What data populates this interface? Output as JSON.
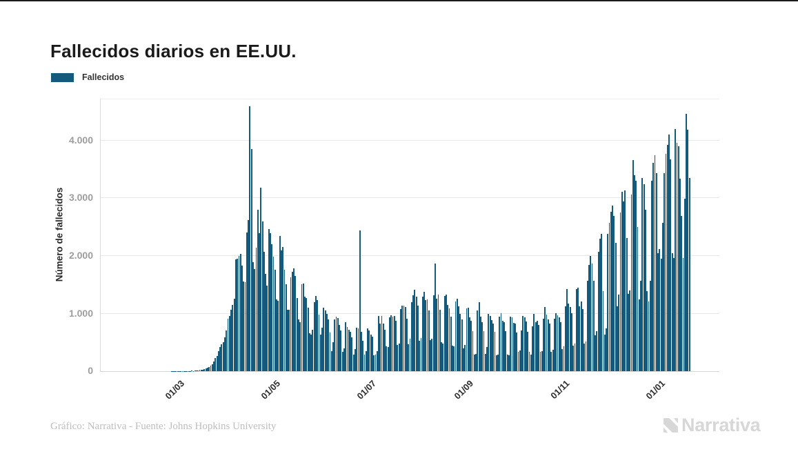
{
  "page": {
    "title": "Fallecidos diarios en EE.UU."
  },
  "legend": {
    "label": "Fallecidos",
    "swatch_color": "#135a7c"
  },
  "footer": {
    "credit": "Gráfico: Narrativa - Fuente: Johns Hopkins University",
    "logo_text": "Narrativa"
  },
  "colors": {
    "bar": "#135a7c",
    "title": "#1a1a1a",
    "gridline": "#e7e7e7",
    "y_tick_label": "#9c9c9c",
    "x_tick_label": "#2d2d2d",
    "footer_text": "#bdbdbd",
    "logo": "#d7d7d7"
  },
  "chart_data": {
    "type": "bar",
    "title": "Fallecidos diarios en EE.UU.",
    "ylabel": "Número de fallecidos",
    "xlabel": "",
    "legend_position": "top-left",
    "grid": "horizontal",
    "ylim": [
      0,
      4716
    ],
    "y_ticks": {
      "values": [
        0,
        1000,
        2000,
        3000,
        4000
      ],
      "labels": [
        "0",
        "1.000",
        "2.000",
        "3.000",
        "4.000"
      ]
    },
    "x_unit": "day",
    "x_ticks": [
      {
        "label": "01/03",
        "day_index": 39
      },
      {
        "label": "01/05",
        "day_index": 100
      },
      {
        "label": "01/07",
        "day_index": 161
      },
      {
        "label": "01/09",
        "day_index": 223
      },
      {
        "label": "01/11",
        "day_index": 284
      },
      {
        "label": "01/01",
        "day_index": 345
      }
    ],
    "series": [
      {
        "name": "Fallecidos",
        "color": "#135a7c",
        "values": [
          0,
          0,
          0,
          0,
          0,
          0,
          0,
          0,
          0,
          0,
          0,
          0,
          0,
          0,
          0,
          0,
          0,
          0,
          0,
          0,
          0,
          0,
          0,
          0,
          0,
          0,
          0,
          0,
          0,
          0,
          0,
          0,
          0,
          0,
          0,
          1,
          1,
          1,
          1,
          1,
          2,
          4,
          3,
          2,
          3,
          4,
          5,
          6,
          7,
          6,
          9,
          11,
          13,
          19,
          24,
          28,
          40,
          48,
          59,
          71,
          95,
          121,
          163,
          225,
          268,
          351,
          423,
          464,
          508,
          583,
          705,
          906,
          962,
          1063,
          1148,
          1253,
          1941,
          1952,
          2001,
          2035,
          1831,
          1559,
          1541,
          2408,
          2620,
          4591,
          3857,
          1891,
          1772,
          2144,
          2804,
          2397,
          3179,
          2601,
          2065,
          1687,
          1487,
          2471,
          2390,
          2201,
          1986,
          1765,
          1244,
          1224,
          2352,
          2100,
          2153,
          1760,
          1512,
          1064,
          1069,
          1630,
          1722,
          1781,
          1656,
          1266,
          902,
          846,
          1503,
          1521,
          1296,
          1268,
          1097,
          662,
          638,
          721,
          1199,
          1303,
          1229,
          982,
          638,
          752,
          1101,
          1052,
          997,
          903,
          668,
          352,
          497,
          902,
          948,
          921,
          803,
          712,
          331,
          392,
          851,
          762,
          722,
          681,
          588,
          291,
          388,
          751,
          738,
          2437,
          681,
          522,
          289,
          342,
          741,
          702,
          631,
          598,
          271,
          293,
          352,
          963,
          831,
          962,
          821,
          722,
          433,
          421,
          938,
          972,
          948,
          963,
          872,
          451,
          482,
          1082,
          1136,
          1141,
          1118,
          912,
          471,
          562,
          1199,
          1319,
          1413,
          1291,
          1133,
          532,
          571,
          1291,
          1379,
          1228,
          1241,
          1051,
          541,
          563,
          1322,
          1868,
          1252,
          1331,
          1068,
          502,
          483,
          1302,
          1331,
          1152,
          1091,
          951,
          442,
          428,
          1211,
          1262,
          1131,
          998,
          902,
          398,
          452,
          1088,
          1097,
          932,
          868,
          691,
          288,
          302,
          1051,
          1199,
          948,
          852,
          691,
          298,
          421,
          998,
          962,
          888,
          832,
          688,
          272,
          291,
          948,
          1002,
          878,
          852,
          698,
          288,
          272,
          941,
          928,
          838,
          821,
          668,
          331,
          358,
          702,
          952,
          928,
          858,
          679,
          338,
          288,
          782,
          988,
          851,
          868,
          798,
          338,
          348,
          912,
          1118,
          978,
          898,
          828,
          338,
          368,
          912,
          1008,
          968,
          938,
          848,
          378,
          428,
          1128,
          1421,
          1172,
          1108,
          1008,
          438,
          478,
          1421,
          1448,
          1128,
          1208,
          1078,
          478,
          518,
          1568,
          1848,
          2002,
          1868,
          1568,
          628,
          698,
          2068,
          2298,
          2378,
          1388,
          638,
          748,
          2378,
          2568,
          2768,
          2868,
          2698,
          2228,
          1128,
          1328,
          2748,
          3108,
          2948,
          3138,
          2308,
          1338,
          1398,
          3068,
          3658,
          3398,
          3298,
          2498,
          1248,
          1568,
          3348,
          3238,
          2798,
          1388,
          1208,
          1568,
          3298,
          3618,
          3748,
          3438,
          2048,
          2118,
          1948,
          2578,
          3438,
          3768,
          3928,
          4108,
          3678,
          2048,
          1958,
          4205,
          3958,
          3898,
          3338,
          2698,
          1958,
          2998,
          4465,
          4188,
          3355
        ]
      }
    ]
  }
}
